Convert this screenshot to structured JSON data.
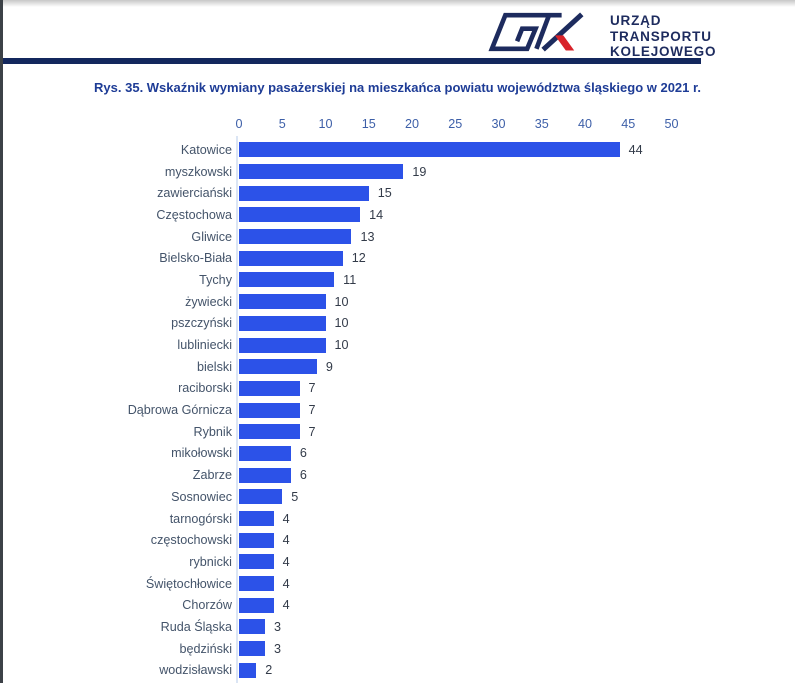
{
  "header": {
    "logo": {
      "icon": "utk-monogram-icon",
      "text_lines": [
        "URZĄD",
        "TRANSPORTU",
        "KOLEJOWEGO"
      ],
      "navy_color": "#1d2b5e",
      "red_color": "#d8232a"
    },
    "rule_color": "#13275d"
  },
  "chart_data": {
    "type": "bar",
    "orientation": "horizontal",
    "title": "Rys. 35. Wskaźnik wymiany pasażerskiej na mieszkańca powiatu województwa śląskiego w 2021 r.",
    "categories": [
      "Katowice",
      "myszkowski",
      "zawierciański",
      "Częstochowa",
      "Gliwice",
      "Bielsko-Biała",
      "Tychy",
      "żywiecki",
      "pszczyński",
      "lubliniecki",
      "bielski",
      "raciborski",
      "Dąbrowa Górnicza",
      "Rybnik",
      "mikołowski",
      "Zabrze",
      "Sosnowiec",
      "tarnogórski",
      "częstochowski",
      "rybnicki",
      "Świętochłowice",
      "Chorzów",
      "Ruda Śląska",
      "będziński",
      "wodzisławski"
    ],
    "values": [
      44,
      19,
      15,
      14,
      13,
      12,
      11,
      10,
      10,
      10,
      9,
      7,
      7,
      7,
      6,
      6,
      5,
      4,
      4,
      4,
      4,
      4,
      3,
      3,
      2
    ],
    "xlabel": "",
    "ylabel": "",
    "xlim": [
      0,
      50
    ],
    "xticks": [
      0,
      5,
      10,
      15,
      20,
      25,
      30,
      35,
      40,
      45,
      50
    ],
    "grid": false,
    "value_labels": true,
    "legend": false,
    "bar_color": "#2c52e8",
    "tick_color": "#3d5fa8",
    "label_color": "#44546a",
    "value_color": "#333b49"
  }
}
